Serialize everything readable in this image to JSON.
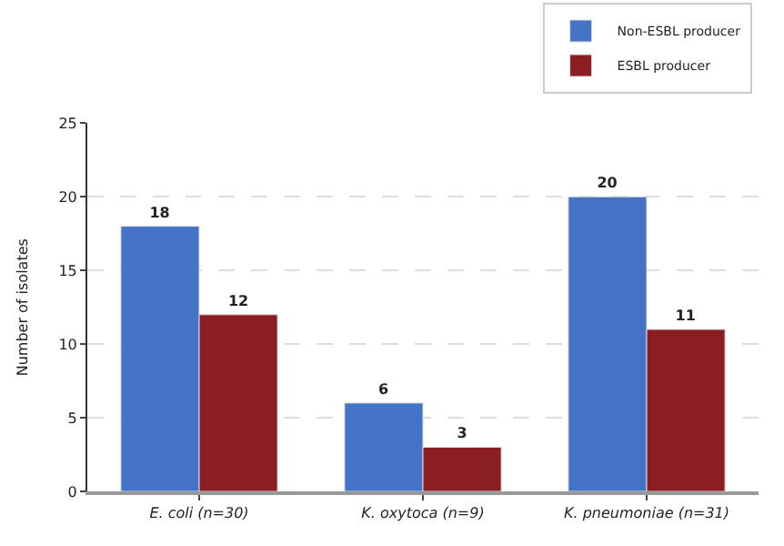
{
  "chart_data": {
    "type": "bar",
    "ylabel": "Number of isolates",
    "categories": [
      "E. coli (n=30)",
      "K. oxytoca (n=9)",
      "K. pneumoniae (n=31)"
    ],
    "series": [
      {
        "name": "Non-ESBL producer",
        "color": "#4472c4",
        "values": [
          18,
          6,
          20
        ]
      },
      {
        "name": "ESBL producer",
        "color": "#8b1e22",
        "values": [
          12,
          3,
          11
        ]
      }
    ],
    "ylim": [
      0,
      25
    ],
    "yticks": [
      0,
      5,
      10,
      15,
      20,
      25
    ],
    "grid": "y",
    "legend": "top right",
    "data_labels": true
  }
}
